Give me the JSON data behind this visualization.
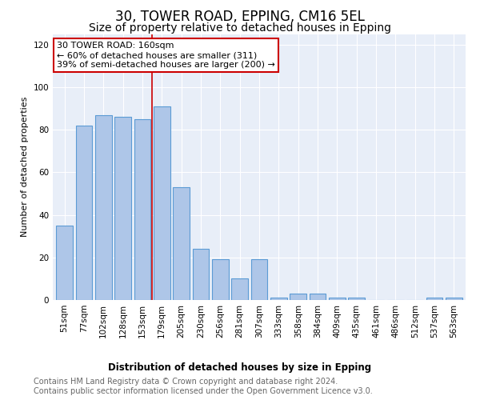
{
  "title1": "30, TOWER ROAD, EPPING, CM16 5EL",
  "title2": "Size of property relative to detached houses in Epping",
  "xlabel": "Distribution of detached houses by size in Epping",
  "ylabel": "Number of detached properties",
  "categories": [
    "51sqm",
    "77sqm",
    "102sqm",
    "128sqm",
    "153sqm",
    "179sqm",
    "205sqm",
    "230sqm",
    "256sqm",
    "281sqm",
    "307sqm",
    "333sqm",
    "358sqm",
    "384sqm",
    "409sqm",
    "435sqm",
    "461sqm",
    "486sqm",
    "512sqm",
    "537sqm",
    "563sqm"
  ],
  "values": [
    35,
    82,
    87,
    86,
    85,
    91,
    53,
    24,
    19,
    10,
    19,
    1,
    3,
    3,
    1,
    1,
    0,
    0,
    0,
    1,
    1
  ],
  "bar_color": "#aec6e8",
  "bar_edge_color": "#5b9bd5",
  "bar_edge_width": 0.8,
  "annotation_box_text": "30 TOWER ROAD: 160sqm\n← 60% of detached houses are smaller (311)\n39% of semi-detached houses are larger (200) →",
  "annotation_box_color": "#ffffff",
  "annotation_box_edge_color": "#cc0000",
  "vline_color": "#cc0000",
  "vline_x_index": 4.5,
  "ylim": [
    0,
    125
  ],
  "yticks": [
    0,
    20,
    40,
    60,
    80,
    100,
    120
  ],
  "background_color": "#e8eef8",
  "footer_text": "Contains HM Land Registry data © Crown copyright and database right 2024.\nContains public sector information licensed under the Open Government Licence v3.0.",
  "title1_fontsize": 12,
  "title2_fontsize": 10,
  "xlabel_fontsize": 8.5,
  "ylabel_fontsize": 8,
  "tick_fontsize": 7.5,
  "footer_fontsize": 7,
  "annot_fontsize": 8
}
